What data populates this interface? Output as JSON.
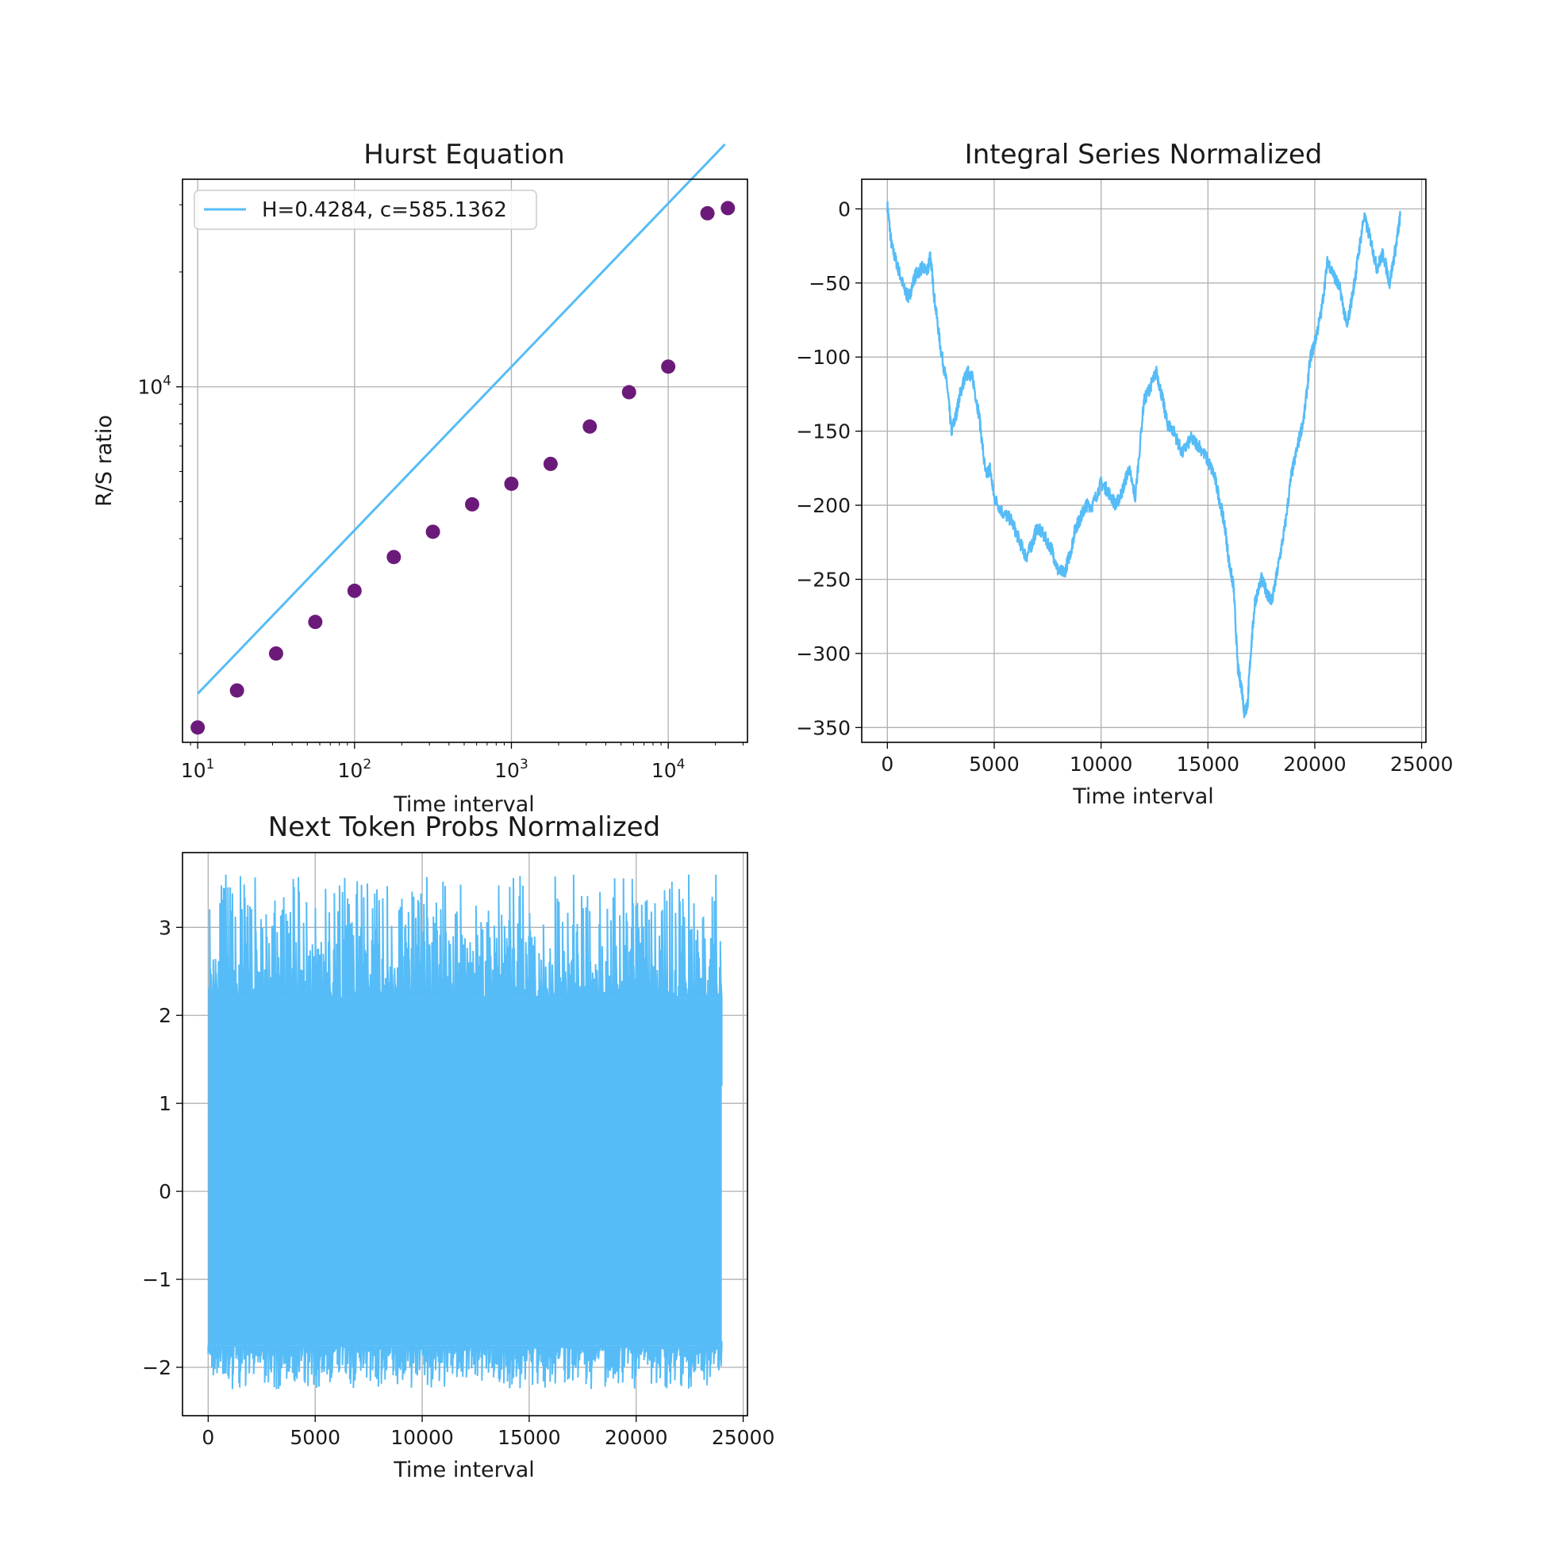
{
  "colors": {
    "line": "#56bcf7",
    "points": "#6b1a7a",
    "grid": "#b0b0b0",
    "axes": "#000000"
  },
  "chart_data": [
    {
      "id": "hurst",
      "type": "scatter",
      "title": "Hurst Equation",
      "xlabel": "Time interval",
      "ylabel": "R/S ratio",
      "xscale": "log",
      "yscale": "log",
      "xlim": [
        8,
        32000
      ],
      "ylim": [
        1170,
        35000
      ],
      "grid": true,
      "xticks": [
        {
          "value": 10,
          "base": "10",
          "exp": "1"
        },
        {
          "value": 100,
          "base": "10",
          "exp": "2"
        },
        {
          "value": 1000,
          "base": "10",
          "exp": "3"
        },
        {
          "value": 10000,
          "base": "10",
          "exp": "4"
        }
      ],
      "yticks": [
        {
          "value": 10000,
          "base": "10",
          "exp": "4"
        }
      ],
      "y_minor_ticks": [
        2000,
        3000,
        4000,
        5000,
        6000,
        7000,
        8000,
        9000,
        20000,
        30000
      ],
      "points": {
        "x": [
          10,
          17.8,
          31.6,
          56.2,
          100,
          178,
          316,
          562,
          1000,
          1778,
          3162,
          5623,
          10000,
          17783,
          24000
        ],
        "y": [
          1280,
          1600,
          2000,
          2420,
          2920,
          3580,
          4170,
          4920,
          5570,
          6280,
          7870,
          9680,
          11300,
          28500,
          29400
        ]
      },
      "fit": {
        "label": "H=0.4284, c=585.1362",
        "H": 0.4284,
        "c": 585.1362,
        "x_range": [
          10,
          23000
        ]
      },
      "legend_position": "upper-left"
    },
    {
      "id": "integral",
      "type": "line",
      "title": "Integral Series Normalized",
      "xlabel": "Time interval",
      "ylabel": "",
      "xlim": [
        -1200,
        25200
      ],
      "ylim": [
        -360,
        20
      ],
      "grid": true,
      "xticks": [
        {
          "value": 0,
          "label": "0"
        },
        {
          "value": 5000,
          "label": "5000"
        },
        {
          "value": 10000,
          "label": "10000"
        },
        {
          "value": 15000,
          "label": "15000"
        },
        {
          "value": 20000,
          "label": "20000"
        },
        {
          "value": 25000,
          "label": "25000"
        }
      ],
      "yticks": [
        {
          "value": 0,
          "label": "0"
        },
        {
          "value": -50,
          "label": "−50"
        },
        {
          "value": -100,
          "label": "−100"
        },
        {
          "value": -150,
          "label": "−150"
        },
        {
          "value": -200,
          "label": "−200"
        },
        {
          "value": -250,
          "label": "−250"
        },
        {
          "value": -300,
          "label": "−300"
        },
        {
          "value": -350,
          "label": "−350"
        }
      ],
      "series": {
        "x": [
          0,
          200,
          500,
          800,
          1000,
          1300,
          1600,
          1900,
          2000,
          2200,
          2500,
          2800,
          3000,
          3200,
          3400,
          3600,
          3800,
          4000,
          4300,
          4600,
          4800,
          5000,
          5400,
          5800,
          6200,
          6500,
          6800,
          7000,
          7300,
          7700,
          8000,
          8300,
          8600,
          8800,
          9000,
          9300,
          9600,
          10000,
          10300,
          10700,
          11000,
          11300,
          11600,
          12000,
          12300,
          12600,
          12900,
          13100,
          13400,
          13800,
          14200,
          14600,
          15000,
          15300,
          15600,
          15800,
          16000,
          16200,
          16400,
          16600,
          16700,
          16850,
          17000,
          17200,
          17500,
          17800,
          18000,
          18300,
          18600,
          18900,
          19200,
          19500,
          19800,
          20000,
          20300,
          20600,
          20900,
          21200,
          21500,
          21800,
          22000,
          22300,
          22600,
          22900,
          23200,
          23500,
          23800,
          24000
        ],
        "y": [
          2,
          -25,
          -40,
          -55,
          -60,
          -45,
          -40,
          -42,
          -30,
          -60,
          -95,
          -120,
          -150,
          -140,
          -125,
          -115,
          -110,
          -115,
          -140,
          -180,
          -175,
          -195,
          -205,
          -210,
          -225,
          -235,
          -225,
          -215,
          -220,
          -230,
          -245,
          -245,
          -230,
          -215,
          -210,
          -200,
          -200,
          -185,
          -190,
          -200,
          -190,
          -175,
          -195,
          -130,
          -120,
          -110,
          -130,
          -145,
          -150,
          -165,
          -155,
          -160,
          -170,
          -180,
          -200,
          -215,
          -240,
          -255,
          -310,
          -325,
          -340,
          -335,
          -300,
          -265,
          -250,
          -260,
          -265,
          -240,
          -215,
          -180,
          -160,
          -140,
          -100,
          -90,
          -70,
          -35,
          -45,
          -55,
          -80,
          -55,
          -35,
          -5,
          -20,
          -40,
          -30,
          -50,
          -25,
          -5
        ]
      }
    },
    {
      "id": "nexttoken",
      "type": "line",
      "title": "Next Token Probs Normalized",
      "xlabel": "Time interval",
      "ylabel": "",
      "xlim": [
        -1200,
        25200
      ],
      "ylim": [
        -2.55,
        3.85
      ],
      "grid": true,
      "xticks": [
        {
          "value": 0,
          "label": "0"
        },
        {
          "value": 5000,
          "label": "5000"
        },
        {
          "value": 10000,
          "label": "10000"
        },
        {
          "value": 15000,
          "label": "15000"
        },
        {
          "value": 20000,
          "label": "20000"
        },
        {
          "value": 25000,
          "label": "25000"
        }
      ],
      "yticks": [
        {
          "value": -2,
          "label": "−2"
        },
        {
          "value": -1,
          "label": "−1"
        },
        {
          "value": 0,
          "label": "0"
        },
        {
          "value": 1,
          "label": "1"
        },
        {
          "value": 2,
          "label": "2"
        },
        {
          "value": 3,
          "label": "3"
        }
      ],
      "series": {
        "x_range": [
          0,
          24000
        ],
        "typical_range": [
          -1.75,
          2.2
        ],
        "extreme_range": [
          -2.25,
          3.6
        ]
      }
    }
  ]
}
